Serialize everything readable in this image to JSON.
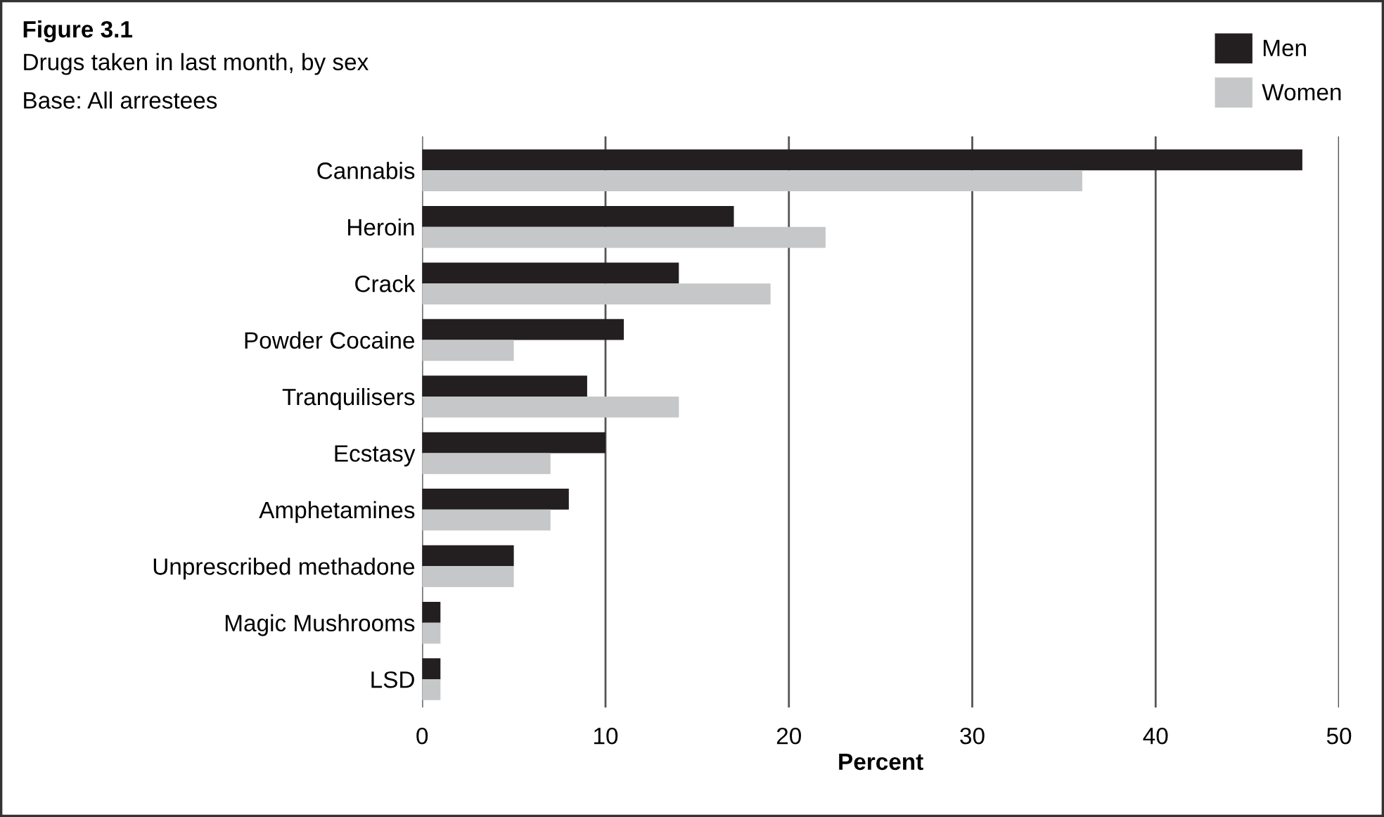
{
  "chart_data": {
    "type": "bar",
    "orientation": "horizontal",
    "title": "Figure 3.1",
    "subtitle": "Drugs taken in last month, by sex",
    "annotations": [
      "Base: All arrestees"
    ],
    "xlabel": "Percent",
    "categories": [
      "Cannabis",
      "Heroin",
      "Crack",
      "Powder Cocaine",
      "Tranquilisers",
      "Ecstasy",
      "Amphetamines",
      "Unprescribed methadone",
      "Magic Mushrooms",
      "LSD"
    ],
    "series": [
      {
        "name": "Men",
        "color": "#231f20",
        "values": [
          48,
          17,
          14,
          11,
          9,
          10,
          8,
          5,
          1,
          1
        ]
      },
      {
        "name": "Women",
        "color": "#c6c7c8",
        "values": [
          36,
          22,
          19,
          5,
          14,
          7,
          7,
          5,
          1,
          1
        ]
      }
    ],
    "xlim": [
      0,
      50
    ],
    "xticks": [
      0,
      10,
      20,
      30,
      40,
      50
    ],
    "grid": "x",
    "legend": "top right"
  }
}
